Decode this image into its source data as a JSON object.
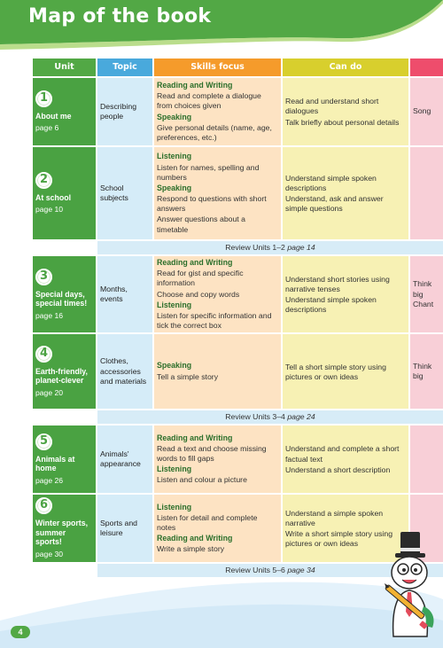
{
  "header": {
    "title": "Map of the book"
  },
  "columns": {
    "unit": "Unit",
    "topic": "Topic",
    "skills": "Skills focus",
    "cando": "Can do",
    "last": ""
  },
  "units": [
    {
      "num": "1",
      "name": "About me",
      "page": "page 6",
      "topic": "Describing people",
      "skills": [
        {
          "h": "Reading and Writing"
        },
        {
          "i": "Read and complete a dialogue from choices given"
        },
        {
          "h": "Speaking"
        },
        {
          "i": "Give personal details (name, age, preferences, etc.)"
        }
      ],
      "cando": [
        "Read and understand short dialogues",
        "Talk briefly about personal details"
      ],
      "last": [
        "Song"
      ]
    },
    {
      "num": "2",
      "name": "At school",
      "page": "page 10",
      "topic": "School subjects",
      "skills": [
        {
          "h": "Listening"
        },
        {
          "i": "Listen for names, spelling and numbers"
        },
        {
          "h": "Speaking"
        },
        {
          "i": "Respond to questions with short answers"
        },
        {
          "i": "Answer questions about a timetable"
        }
      ],
      "cando": [
        "Understand simple spoken descriptions",
        "Understand, ask and answer simple questions"
      ],
      "last": []
    },
    {
      "num": "3",
      "name": "Special days, special times!",
      "page": "page 16",
      "topic": "Months, events",
      "skills": [
        {
          "h": "Reading and Writing"
        },
        {
          "i": "Read for gist and specific information"
        },
        {
          "i": "Choose and copy words"
        },
        {
          "h": "Listening"
        },
        {
          "i": "Listen for specific information and tick the correct box"
        }
      ],
      "cando": [
        "Understand short stories using narrative tenses",
        "Understand simple spoken descriptions"
      ],
      "last": [
        "Think big",
        "Chant"
      ]
    },
    {
      "num": "4",
      "name": "Earth-friendly, planet-clever",
      "page": "page 20",
      "topic": "Clothes, accessories and materials",
      "skills": [
        {
          "h": "Speaking"
        },
        {
          "i": "Tell a simple story"
        }
      ],
      "cando": [
        "Tell a short simple story using pictures or own ideas"
      ],
      "last": [
        "Think big"
      ]
    },
    {
      "num": "5",
      "name": "Animals at home",
      "page": "page 26",
      "topic": "Animals' appearance",
      "skills": [
        {
          "h": "Reading and Writing"
        },
        {
          "i": "Read a text and choose missing words to fill gaps"
        },
        {
          "h": "Listening"
        },
        {
          "i": "Listen and colour a picture"
        }
      ],
      "cando": [
        "Understand and complete a short factual text",
        "Understand a short description"
      ],
      "last": []
    },
    {
      "num": "6",
      "name": "Winter sports, summer sports!",
      "page": "page 30",
      "topic": "Sports and leisure",
      "skills": [
        {
          "h": "Listening"
        },
        {
          "i": "Listen for detail and complete notes"
        },
        {
          "h": "Reading and Writing"
        },
        {
          "i": "Write a simple story"
        }
      ],
      "cando": [
        "Understand a simple spoken narrative",
        "Write a short simple story using pictures or own ideas"
      ],
      "last": []
    }
  ],
  "reviews": [
    {
      "text": "Review Units 1–2",
      "page": "page 14"
    },
    {
      "text": "Review Units 3–4",
      "page": "page 24"
    },
    {
      "text": "Review Units 5–6",
      "page": "page 34"
    }
  ],
  "footer": {
    "page_number": "4"
  },
  "colors": {
    "green": "#52a845",
    "blue": "#49a9dc",
    "orange": "#f59b2b",
    "yellow": "#d8cf2d",
    "pink": "#ee4d6c"
  },
  "icons": {
    "mascot": "cartoon-character-with-top-hat-and-pencil"
  }
}
